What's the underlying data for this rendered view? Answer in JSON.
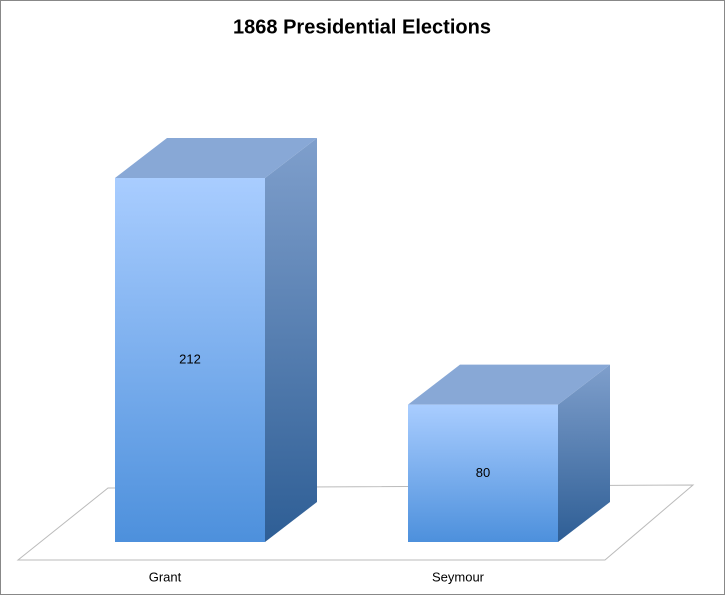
{
  "chart_data": {
    "type": "bar3d",
    "title": "1868 Presidential Elections",
    "categories": [
      "Grant",
      "Seymour"
    ],
    "values": [
      212,
      80
    ]
  }
}
